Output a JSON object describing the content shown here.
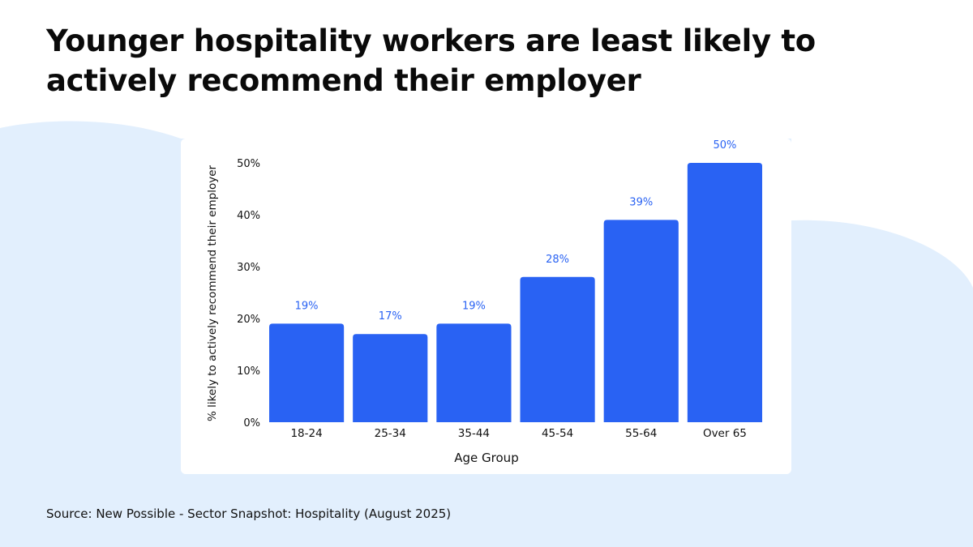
{
  "title": "Younger hospitality workers are least likely to actively recommend their employer",
  "source": "Source: New Possible - Sector Snapshot: Hospitality (August 2025)",
  "colors": {
    "bar": "#2962f3",
    "data_label": "#2962f3",
    "background_shape": "#e2effd",
    "card": "#ffffff",
    "text": "#111111"
  },
  "chart_data": {
    "type": "bar",
    "xlabel": "Age Group",
    "ylabel": "% likely to actively recommend their employer",
    "categories": [
      "18-24",
      "25-34",
      "35-44",
      "45-54",
      "55-64",
      "Over 65"
    ],
    "values": [
      19,
      17,
      19,
      28,
      39,
      50
    ],
    "data_labels": [
      "19%",
      "17%",
      "19%",
      "28%",
      "39%",
      "50%"
    ],
    "yticks": [
      0,
      10,
      20,
      30,
      40,
      50
    ],
    "ytick_labels": [
      "0%",
      "10%",
      "20%",
      "30%",
      "40%",
      "50%"
    ],
    "ylim": [
      0,
      50
    ],
    "grid": false,
    "legend": "none"
  }
}
